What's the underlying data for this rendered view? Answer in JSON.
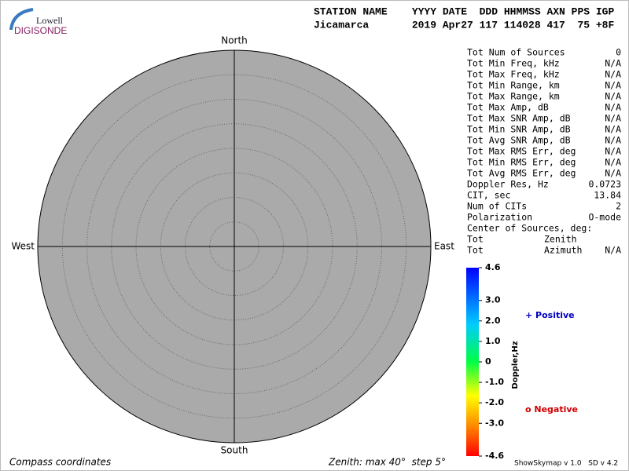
{
  "logo": {
    "top": "Lowell",
    "bottom": "DIGISONDE"
  },
  "header": {
    "labels": "STATION NAME    YYYY DATE  DDD HHMMSS AXN PPS IGP",
    "values": "Jicamarca       2019 Apr27 117 114028 417  75 +8F"
  },
  "compass": {
    "north": "North",
    "south": "South",
    "east": "East",
    "west": "West"
  },
  "stats": {
    "rows": [
      [
        "Tot Num of Sources",
        "0"
      ],
      [
        "Tot Min Freq, kHz",
        "N/A"
      ],
      [
        "Tot Max Freq, kHz",
        "N/A"
      ],
      [
        "Tot Min Range, km",
        "N/A"
      ],
      [
        "Tot Max Range, km",
        "N/A"
      ],
      [
        "Tot Max Amp, dB",
        "N/A"
      ],
      [
        "Tot Max SNR Amp, dB",
        "N/A"
      ],
      [
        "Tot Min SNR Amp, dB",
        "N/A"
      ],
      [
        "Tot Avg SNR Amp, dB",
        "N/A"
      ],
      [
        "Tot Max RMS Err, deg",
        "N/A"
      ],
      [
        "Tot Min RMS Err, deg",
        "N/A"
      ],
      [
        "Tot Avg RMS Err, deg",
        "N/A"
      ],
      [
        "Doppler Res, Hz",
        "0.0723"
      ],
      [
        "CIT, sec",
        "13.84"
      ],
      [
        "Num of CITs",
        "2"
      ],
      [
        "Polarization",
        "O-mode"
      ]
    ],
    "sources_heading": "Center of Sources, deg:",
    "source_rows": [
      [
        "Tot",
        "Zenith"
      ],
      [
        "Tot",
        "Azimuth",
        "N/A"
      ]
    ]
  },
  "colorbar": {
    "title": "Doppler,Hz",
    "lim": [
      -4.6,
      4.6
    ],
    "ticks": [
      4.6,
      {
        "value": 3,
        "label": "3.0"
      },
      {
        "value": 2,
        "label": "2.0"
      },
      {
        "value": 1,
        "label": "1.0"
      },
      0,
      {
        "value": -1,
        "label": "-1.0"
      },
      {
        "value": -2,
        "label": "-2.0"
      },
      {
        "value": -3,
        "label": "-3.0"
      },
      -4.6
    ]
  },
  "legend": {
    "positive": "+ Positive",
    "negative": "o Negative"
  },
  "footer": {
    "left": "Compass coordinates",
    "zenith": "Zenith: max 40°  step 5°",
    "version": "ShowSkymap v 1.0   SD v 4.2"
  }
}
